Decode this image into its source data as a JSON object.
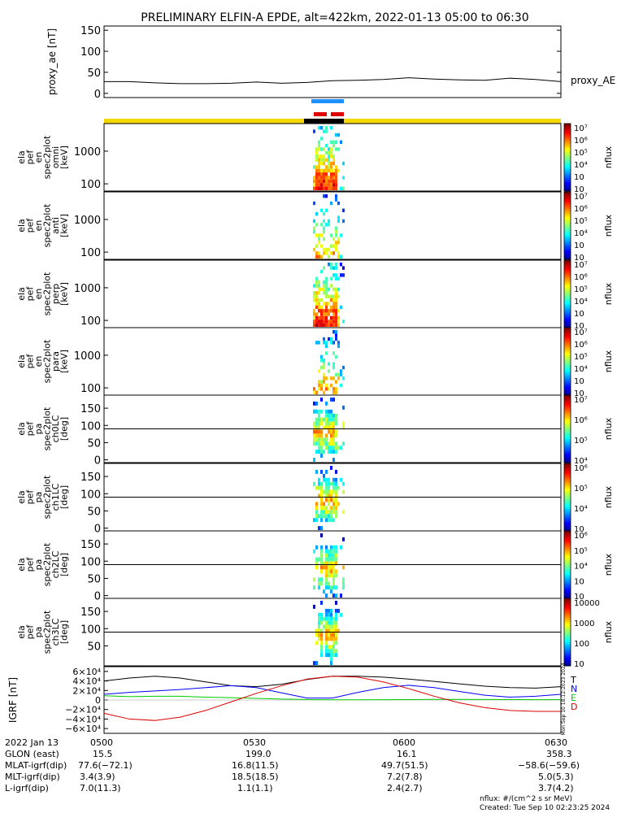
{
  "title": "PRELIMINARY ELFIN-A EPDE, alt=422km, 2022-01-13 05:00 to 06:30",
  "chart_data": [
    {
      "type": "line",
      "panel": "proxy_ae",
      "ylabel": "proxy_ae [nT]",
      "legend": "proxy_AE",
      "ylim": [
        -10,
        160
      ],
      "yticks": [
        "0",
        "50",
        "100",
        "150"
      ],
      "ytick_values": [
        0,
        50,
        100,
        150
      ],
      "x_minutes": [
        0,
        5,
        10,
        15,
        20,
        25,
        30,
        35,
        40,
        45,
        50,
        55,
        60,
        65,
        70,
        75,
        80,
        85,
        90
      ],
      "values": [
        28,
        28,
        25,
        23,
        23,
        24,
        27,
        24,
        26,
        30,
        31,
        33,
        37,
        34,
        32,
        31,
        36,
        33,
        28
      ]
    },
    {
      "type": "heatmap",
      "panels": [
        {
          "name": "omni",
          "ylabel": [
            "ela",
            "pef",
            "en",
            "spec2plot",
            "omni",
            "[keV]"
          ],
          "yticks": [
            "100",
            "1000"
          ],
          "cbar": [
            "10⁷",
            "10⁶",
            "10⁵",
            "10⁴",
            "10⁳",
            "10⁲"
          ],
          "cbar_label": "nflux"
        },
        {
          "name": "anti",
          "ylabel": [
            "ela",
            "pef",
            "en",
            "spec2plot",
            "anti",
            "[keV]"
          ],
          "yticks": [
            "100",
            "1000"
          ],
          "cbar": [
            "10⁷",
            "10⁶",
            "10⁵",
            "10⁴",
            "10⁳",
            "10⁲"
          ],
          "cbar_label": "nflux"
        },
        {
          "name": "perp",
          "ylabel": [
            "ela",
            "pef",
            "en",
            "spec2plot",
            "perp",
            "[keV]"
          ],
          "yticks": [
            "100",
            "1000"
          ],
          "cbar": [
            "10⁷",
            "10⁶",
            "10⁵",
            "10⁴",
            "10⁳",
            "10⁲"
          ],
          "cbar_label": "nflux"
        },
        {
          "name": "para",
          "ylabel": [
            "ela",
            "pef",
            "en",
            "spec2plot",
            "para",
            "[keV]"
          ],
          "yticks": [
            "100",
            "1000"
          ],
          "cbar": [
            "10⁷",
            "10⁶",
            "10⁵",
            "10⁴",
            "10⁳",
            "10⁲"
          ],
          "cbar_label": "nflux"
        },
        {
          "name": "ch0LC",
          "ylabel": [
            "ela",
            "pef",
            "pa",
            "spec2plot",
            "ch0LC",
            "[deg]"
          ],
          "yticks": [
            "0",
            "50",
            "100",
            "150"
          ],
          "cbar": [
            "10⁷",
            "10⁶",
            "10⁵",
            "10⁴"
          ],
          "cbar_label": "nflux"
        },
        {
          "name": "ch1LC",
          "ylabel": [
            "ela",
            "pef",
            "pa",
            "spec2plot",
            "ch1LC",
            "[deg]"
          ],
          "yticks": [
            "0",
            "50",
            "100",
            "150"
          ],
          "cbar": [
            "10⁶",
            "10⁵",
            "10⁴",
            "10⁳"
          ],
          "cbar_label": "nflux"
        },
        {
          "name": "ch2LC",
          "ylabel": [
            "ela",
            "pef",
            "pa",
            "spec2plot",
            "ch2LC",
            "[deg]"
          ],
          "yticks": [
            "0",
            "50",
            "100",
            "150"
          ],
          "cbar": [
            "10⁶",
            "10⁵",
            "10⁴",
            "10⁳",
            "10⁲"
          ],
          "cbar_label": "nflux"
        },
        {
          "name": "ch3LC",
          "ylabel": [
            "ela",
            "pef",
            "pa",
            "spec2plot",
            "ch3LC",
            "[deg]"
          ],
          "yticks": [
            "50",
            "100",
            "150"
          ],
          "cbar": [
            "10000",
            "1000",
            "100",
            "10"
          ],
          "cbar_label": "nflux"
        }
      ]
    },
    {
      "type": "line",
      "panel": "IGRF",
      "ylabel": "IGRF [nT]",
      "ylim": [
        -70000,
        70000
      ],
      "yticks": [
        "6×10⁴",
        "4×10⁴",
        "2×10⁴",
        "0",
        "−2×10⁴",
        "−4×10⁴",
        "−6×10⁴"
      ],
      "ytick_values": [
        60000,
        40000,
        20000,
        0,
        -20000,
        -40000,
        -60000
      ],
      "x_minutes": [
        0,
        5,
        10,
        15,
        20,
        25,
        30,
        35,
        40,
        45,
        50,
        55,
        60,
        65,
        70,
        75,
        80,
        85,
        90
      ],
      "series": [
        {
          "name": "T",
          "color": "#000000",
          "values": [
            40000,
            46000,
            50000,
            46000,
            38000,
            30000,
            28000,
            33000,
            43000,
            50000,
            50000,
            48000,
            44000,
            39000,
            34000,
            29000,
            26000,
            25000,
            28000
          ]
        },
        {
          "name": "N",
          "color": "#0000ff",
          "values": [
            12000,
            16000,
            19000,
            22000,
            26000,
            30000,
            26000,
            15000,
            4000,
            4000,
            16000,
            26000,
            31000,
            26000,
            18000,
            10000,
            6000,
            8000,
            12000
          ]
        },
        {
          "name": "E",
          "color": "#00cc00",
          "values": [
            9000,
            7000,
            8000,
            8000,
            6000,
            5000,
            3500,
            2000,
            1000,
            500,
            400,
            600,
            900,
            1200,
            1300,
            1000,
            800,
            700,
            900
          ]
        },
        {
          "name": "D",
          "color": "#dd0000",
          "values": [
            -28000,
            -40000,
            -43000,
            -36000,
            -22000,
            -4000,
            14000,
            30000,
            44000,
            50000,
            48000,
            38000,
            24000,
            8000,
            -6000,
            -16000,
            -22000,
            -24000,
            -24000
          ]
        }
      ]
    }
  ],
  "time_row": {
    "label": "2022 Jan 13",
    "ticks": [
      "0500",
      "0530",
      "0600",
      "0630"
    ]
  },
  "annotation_rows": [
    {
      "label": "GLON (east)",
      "values": [
        "15.5",
        "199.0",
        "16.1",
        "358.3"
      ]
    },
    {
      "label": "MLAT-igrf(dip)",
      "values": [
        "77.6(−72.1)",
        "16.8(11.5)",
        "49.7(51.5)",
        "−58.6(−59.6)"
      ]
    },
    {
      "label": "MLT-igrf(dip)",
      "values": [
        "3.4(3.9)",
        "18.5(18.5)",
        "7.2(7.8)",
        "5.0(5.3)"
      ]
    },
    {
      "label": "L-igrf(dip)",
      "values": [
        "7.0(11.3)",
        "1.1(1.1)",
        "2.4(2.7)",
        "3.7(4.2)"
      ]
    }
  ],
  "footer": {
    "units": "nflux: #/(cm^2 s sr MeV)",
    "created": "Created: Tue Sep 10 02:23:25 2024"
  },
  "side_stamp": "Mon Sep 10 18:12:2023 2024"
}
